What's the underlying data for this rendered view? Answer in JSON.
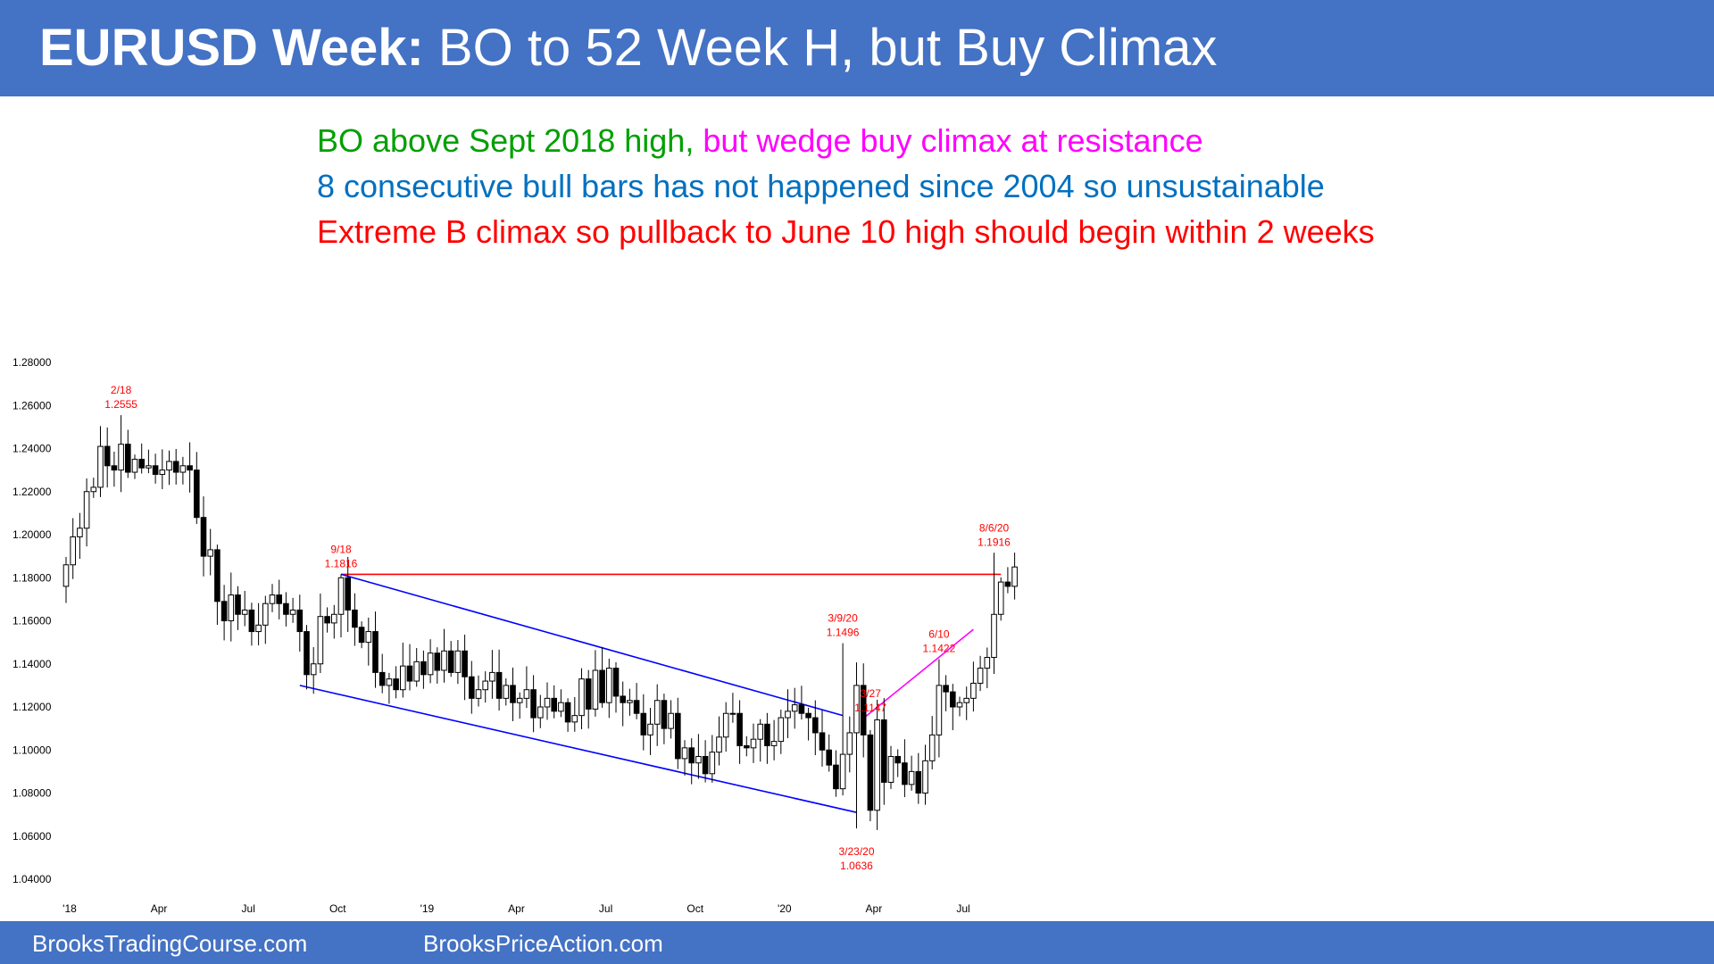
{
  "header": {
    "title_bold": "EURUSD Week:",
    "title_rest": " BO to 52 Week H, but Buy Climax",
    "bg_color": "#4472c4"
  },
  "notes": [
    {
      "parts": [
        {
          "text": "BO above Sept 2018 high,",
          "color": "#00a000"
        },
        {
          "text": " but wedge buy climax at resistance",
          "color": "#ff00ff"
        }
      ]
    },
    {
      "parts": [
        {
          "text": "8 consecutive bull bars has not happened since 2004 so unsustainable",
          "color": "#0070c0"
        }
      ]
    },
    {
      "parts": [
        {
          "text": "Extreme B climax so pullback to June 10 high should begin within 2 weeks",
          "color": "#ff0000"
        }
      ]
    }
  ],
  "footer": {
    "link1": "BrooksTradingCourse.com",
    "link2": "BrooksPriceAction.com"
  },
  "chart_data": {
    "type": "candlestick",
    "title": "EURUSD Week",
    "ylim": [
      1.04,
      1.28
    ],
    "y_ticks": [
      "1.28000",
      "1.26000",
      "1.24000",
      "1.22000",
      "1.20000",
      "1.18000",
      "1.16000",
      "1.14000",
      "1.12000",
      "1.10000",
      "1.08000",
      "1.06000",
      "1.04000"
    ],
    "x_ticks": [
      {
        "label": "'18",
        "bar": 0
      },
      {
        "label": "Apr",
        "bar": 13
      },
      {
        "label": "Jul",
        "bar": 26
      },
      {
        "label": "Oct",
        "bar": 39
      },
      {
        "label": "'19",
        "bar": 52
      },
      {
        "label": "Apr",
        "bar": 65
      },
      {
        "label": "Jul",
        "bar": 78
      },
      {
        "label": "Oct",
        "bar": 91
      },
      {
        "label": "'20",
        "bar": 104
      },
      {
        "label": "Apr",
        "bar": 117
      },
      {
        "label": "Jul",
        "bar": 130
      }
    ],
    "closes": [
      1.186,
      1.199,
      1.203,
      1.22,
      1.222,
      1.241,
      1.232,
      1.23,
      1.242,
      1.229,
      1.235,
      1.231,
      1.232,
      1.228,
      1.23,
      1.234,
      1.229,
      1.232,
      1.23,
      1.208,
      1.19,
      1.193,
      1.169,
      1.16,
      1.172,
      1.163,
      1.165,
      1.155,
      1.158,
      1.168,
      1.172,
      1.168,
      1.163,
      1.165,
      1.155,
      1.135,
      1.14,
      1.162,
      1.159,
      1.163,
      1.18,
      1.165,
      1.157,
      1.15,
      1.155,
      1.136,
      1.13,
      1.133,
      1.128,
      1.139,
      1.132,
      1.141,
      1.135,
      1.145,
      1.137,
      1.146,
      1.136,
      1.146,
      1.134,
      1.124,
      1.128,
      1.132,
      1.136,
      1.124,
      1.13,
      1.122,
      1.124,
      1.128,
      1.115,
      1.12,
      1.124,
      1.118,
      1.122,
      1.113,
      1.116,
      1.133,
      1.119,
      1.137,
      1.122,
      1.138,
      1.125,
      1.122,
      1.123,
      1.117,
      1.107,
      1.112,
      1.123,
      1.11,
      1.117,
      1.096,
      1.101,
      1.094,
      1.097,
      1.089,
      1.099,
      1.106,
      1.117,
      1.117,
      1.102,
      1.101,
      1.105,
      1.112,
      1.102,
      1.104,
      1.115,
      1.118,
      1.121,
      1.117,
      1.115,
      1.108,
      1.1,
      1.093,
      1.082,
      1.098,
      1.108,
      1.13,
      1.107,
      1.072,
      1.114,
      1.085,
      1.097,
      1.094,
      1.084,
      1.09,
      1.08,
      1.095,
      1.107,
      1.13,
      1.127,
      1.12,
      1.122,
      1.124,
      1.131,
      1.138,
      1.143,
      1.163,
      1.178,
      1.176,
      1.185
    ],
    "annotations": [
      {
        "label": "2/18",
        "value": "1.2555",
        "bar": 8,
        "price": 1.2555
      },
      {
        "label": "9/18",
        "value": "1.1816",
        "bar": 40,
        "price": 1.1816
      },
      {
        "label": "3/9/20",
        "value": "1.1496",
        "bar": 113,
        "price": 1.1496
      },
      {
        "label": "3/27",
        "value": "1.1147",
        "bar": 116,
        "price": 1.1147
      },
      {
        "label": "3/23/20",
        "value": "1.0636",
        "bar": 115,
        "price": 1.0636
      },
      {
        "label": "6/10",
        "value": "1.1422",
        "bar": 127,
        "price": 1.1422
      },
      {
        "label": "8/6/20",
        "value": "1.1916",
        "bar": 135,
        "price": 1.1916
      }
    ],
    "lines": [
      {
        "name": "resistance",
        "color": "#ff0000",
        "from": [
          40,
          1.1816
        ],
        "to": [
          136,
          1.1816
        ]
      },
      {
        "name": "channel-top",
        "color": "#0000ff",
        "from": [
          40,
          1.1816
        ],
        "to": [
          113,
          1.116
        ]
      },
      {
        "name": "channel-bottom",
        "color": "#0000ff",
        "from": [
          34,
          1.13
        ],
        "to": [
          115,
          1.071
        ]
      },
      {
        "name": "wedge-line",
        "color": "#ff00ff",
        "from": [
          116,
          1.1147
        ],
        "to": [
          132,
          1.156
        ]
      }
    ]
  }
}
